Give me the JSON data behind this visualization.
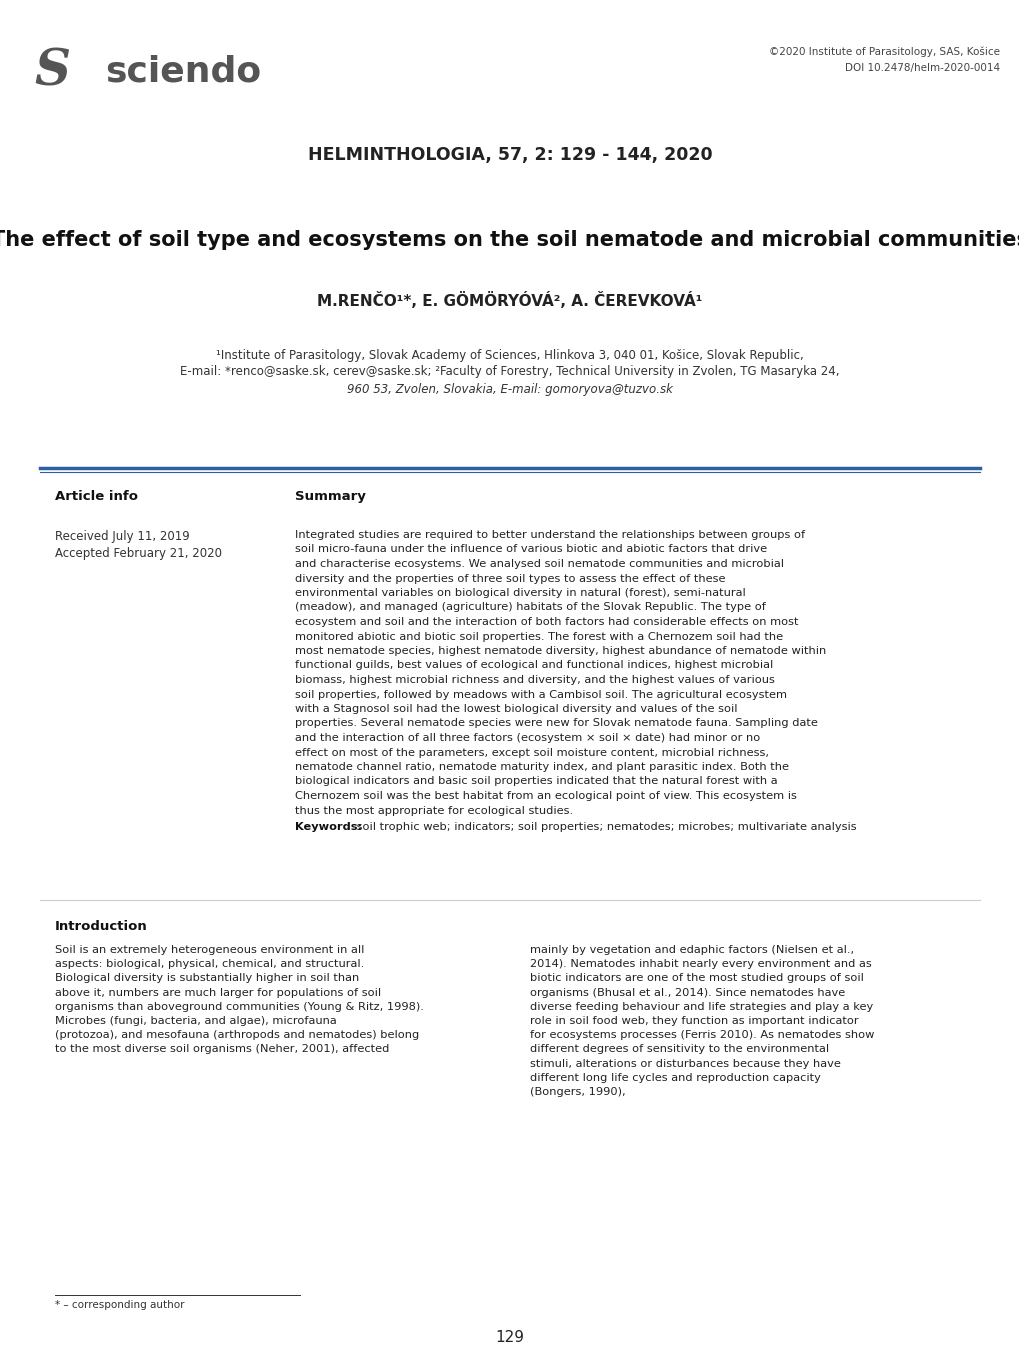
{
  "bg_color": "#ffffff",
  "logo_text": "sciendo",
  "copyright_line1": "©2020 Institute of Parasitology, SAS, Košice",
  "copyright_line2": "DOI 10.2478/helm-2020-0014",
  "journal_header": "HELMINTHOLOGIA, 57, 2: 129 - 144, 2020",
  "paper_title": "The effect of soil type and ecosystems on the soil nematode and microbial communities",
  "authors": "M.RENČO¹*, E. GÖMÖRYÓVÁ², A. ČEREVKOVÁ¹",
  "affiliation_line1": "¹Institute of Parasitology, Slovak Academy of Sciences, Hlinkova 3, 040 01, Košice, Slovak Republic,",
  "affiliation_line2": "E-mail: *renco@saske.sk, cerev@saske.sk; ²Faculty of Forestry, Technical University in Zvolen, TG Masaryka 24,",
  "affiliation_line3": "960 53, Zvolen, Slovakia, E-mail: gomoryova@tuzvo.sk",
  "separator_color": "#2e5fa3",
  "article_info_label": "Article info",
  "summary_label": "Summary",
  "received": "Received July 11, 2019",
  "accepted": "Accepted February 21, 2020",
  "summary_text": "Integrated studies are required to better understand the relationships between groups of soil micro-fauna under the influence of various biotic and abiotic factors that drive and characterise ecosystems. We analysed soil nematode communities and microbial diversity and the properties of three soil types to assess the effect of these environmental variables on biological diversity in natural (forest), semi-natural (meadow), and managed (agriculture) habitats of the Slovak Republic. The type of ecosystem and soil and the interaction of both factors had considerable effects on most monitored abiotic and biotic soil properties. The forest with a Chernozem soil had the most nematode species, highest nematode diversity, highest abundance of nematode within functional guilds, best values of ecological and functional indices, highest microbial biomass, highest microbial richness and diversity, and the highest values of various soil properties, followed by meadows with a Cambisol soil. The agricultural ecosystem with a Stagnosol soil had the lowest biological diversity and values of the soil properties. Several nematode species were new for Slovak nematode fauna. Sampling date and the interaction of all three factors (ecosystem × soil × date) had minor or no effect on most of the parameters, except soil moisture content, microbial richness, nematode channel ratio, nematode maturity index, and plant parasitic index. Both the biological indicators and basic soil properties indicated that the natural forest with a Chernozem soil was the best habitat from an ecological point of view. This ecosystem is thus the most appropriate for ecological studies.",
  "keywords_label": "Keywords:",
  "keywords_text": " soil trophic web; indicators; soil properties; nematodes; microbes; multivariate analysis",
  "intro_heading": "Introduction",
  "intro_text_left": "Soil is an extremely heterogeneous environment in all aspects: biological, physical, chemical, and structural. Biological diversity is substantially higher in soil than above it, numbers are much larger for populations of soil organisms than aboveground communities (Young & Ritz, 1998). Microbes (fungi, bacteria, and algae), microfauna (protozoa), and mesofauna (arthropods and nematodes) belong to the most diverse soil organisms (Neher, 2001), affected",
  "intro_text_right": "mainly by vegetation and edaphic factors (Nielsen et al., 2014). Nematodes inhabit nearly every environment and as biotic indicators are one of the most studied groups of soil organisms (Bhusal et al., 2014). Since nematodes have diverse feeding behaviour and life strategies and play a key role in soil food web, they function as important indicator for ecosystems processes (Ferris 2010). As nematodes show different degrees of sensitivity to the environmental stimuli, alterations or disturbances because they have different long life cycles and reproduction capacity (Bongers, 1990),",
  "footnote": "* – corresponding author",
  "page_number": "129"
}
